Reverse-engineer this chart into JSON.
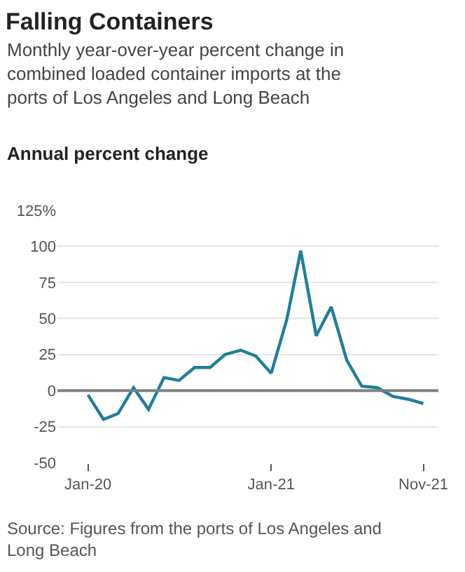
{
  "chart_data": {
    "type": "line",
    "title": "Falling Containers",
    "subtitle": "Monthly year-over-year percent change in\ncombined loaded container imports at the\nports of Los Angeles and Long Beach",
    "ylabel": "Annual percent change",
    "annotations": [
      "Source: Figures from the ports of Los Angeles and\nLong Beach"
    ],
    "x": [
      "2020-01",
      "2020-02",
      "2020-03",
      "2020-04",
      "2020-05",
      "2020-06",
      "2020-07",
      "2020-08",
      "2020-09",
      "2020-10",
      "2020-11",
      "2020-12",
      "2021-01",
      "2021-02",
      "2021-03",
      "2021-04",
      "2021-05",
      "2021-06",
      "2021-07",
      "2021-08",
      "2021-09",
      "2021-10",
      "2021-11"
    ],
    "series": [
      {
        "color": "#1f7f9a",
        "values": [
          -3,
          -20,
          -16,
          2,
          -13,
          9,
          7,
          16,
          16,
          25,
          28,
          24,
          12,
          49,
          97,
          38,
          58,
          21,
          3,
          2,
          -4,
          -6,
          -9
        ]
      }
    ],
    "xlim": [
      "2019-11-01",
      "2021-12-01"
    ],
    "xticks": [
      {
        "value": "2020-01",
        "label": "Jan-20"
      },
      {
        "value": "2021-01",
        "label": "Jan-21"
      },
      {
        "value": "2021-11",
        "label": "Nov-21"
      }
    ],
    "ylim": [
      -50,
      125
    ],
    "yticks": [
      -50,
      -25,
      0,
      25,
      50,
      75,
      100,
      {
        "value": 125,
        "label": "125%"
      }
    ],
    "ref_lines": [
      {
        "axis": "y",
        "value": 0,
        "color": "#808080"
      }
    ],
    "grid": "y",
    "marker": "none",
    "line_style": "solid"
  }
}
